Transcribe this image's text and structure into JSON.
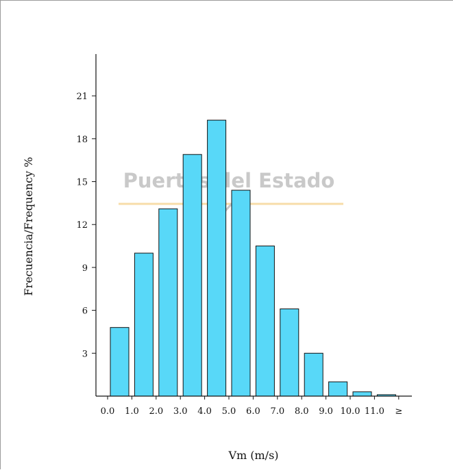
{
  "chart_data": {
    "type": "bar",
    "xlabel": "Vm (m/s)",
    "ylabel": "Frecuencia/Frequency %",
    "x_ticks": [
      "0.0",
      "1.0",
      "2.0",
      "3.0",
      "4.0",
      "5.0",
      "6.0",
      "7.0",
      "8.0",
      "9.0",
      "10.0",
      "11.0",
      "≥"
    ],
    "y_ticks": [
      3,
      6,
      9,
      12,
      15,
      18,
      21
    ],
    "ylim": [
      0,
      24
    ],
    "bins": [
      "0-1",
      "1-2",
      "2-3",
      "3-4",
      "4-5",
      "5-6",
      "6-7",
      "7-8",
      "8-9",
      "9-10",
      "10-11",
      "≥11"
    ],
    "values": [
      4.8,
      10.0,
      13.1,
      16.9,
      19.3,
      14.4,
      10.5,
      6.1,
      3.0,
      1.0,
      0.3,
      0.1
    ],
    "bar_color": "#58d8f8",
    "bar_edge_color": "#111111",
    "grid": false,
    "watermark": "Puertos del Estado"
  }
}
